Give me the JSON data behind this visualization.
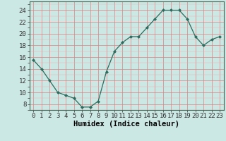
{
  "x": [
    0,
    1,
    2,
    3,
    4,
    5,
    6,
    7,
    8,
    9,
    10,
    11,
    12,
    13,
    14,
    15,
    16,
    17,
    18,
    19,
    20,
    21,
    22,
    23
  ],
  "y": [
    15.5,
    14.0,
    12.0,
    10.0,
    9.5,
    9.0,
    7.5,
    7.5,
    8.5,
    13.5,
    17.0,
    18.5,
    19.5,
    19.5,
    21.0,
    22.5,
    24.0,
    24.0,
    24.0,
    22.5,
    19.5,
    18.0,
    19.0,
    19.5
  ],
  "line_color": "#2d6b5e",
  "marker": "D",
  "marker_size": 2,
  "bg_color": "#cce8e4",
  "grid_color": "#e08080",
  "grid_minor_color": "#eaabab",
  "xlabel": "Humidex (Indice chaleur)",
  "xlabel_fontsize": 7.5,
  "ylabel_ticks": [
    8,
    10,
    12,
    14,
    16,
    18,
    20,
    22,
    24
  ],
  "xlim": [
    -0.5,
    23.5
  ],
  "ylim": [
    7.0,
    25.5
  ],
  "xtick_labels": [
    "0",
    "1",
    "2",
    "3",
    "4",
    "5",
    "6",
    "7",
    "8",
    "9",
    "10",
    "11",
    "12",
    "13",
    "14",
    "15",
    "16",
    "17",
    "18",
    "19",
    "20",
    "21",
    "22",
    "23"
  ],
  "tick_fontsize": 6.5
}
